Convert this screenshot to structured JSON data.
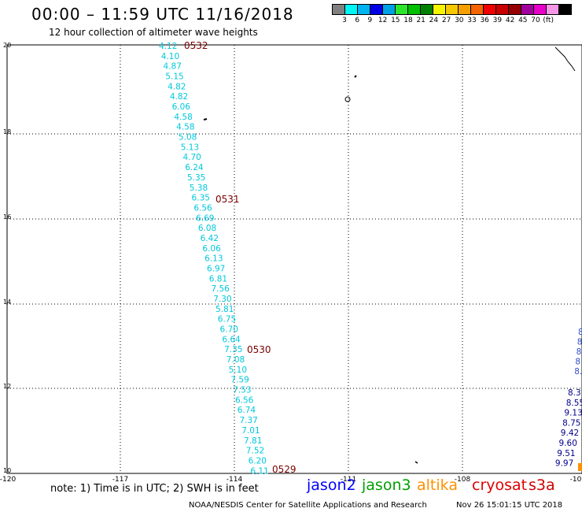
{
  "header": {
    "title": "00:00 – 11:59 UTC 11/16/2018",
    "subtitle": "12 hour collection of altimeter wave heights"
  },
  "color_scale": {
    "colors": [
      "#808080",
      "#00f5f5",
      "#00b4f0",
      "#0000e6",
      "#00a0e6",
      "#2ce62c",
      "#00c000",
      "#008000",
      "#f5f500",
      "#f5c800",
      "#f5a000",
      "#f56400",
      "#f00000",
      "#c80000",
      "#960000",
      "#a0009b",
      "#e600c8",
      "#f596e6",
      "#000000"
    ],
    "labels": [
      "3",
      "6",
      "9",
      "12",
      "15",
      "18",
      "21",
      "24",
      "27",
      "30",
      "33",
      "36",
      "39",
      "42",
      "45",
      "70",
      "(ft)"
    ]
  },
  "axes": {
    "y_ticks": [
      "20",
      "18",
      "16",
      "14",
      "12",
      "10"
    ],
    "x_ticks": [
      "-120",
      "-117",
      "-114",
      "-111",
      "-108",
      "-10"
    ]
  },
  "track_main": {
    "color": "#00c8dc",
    "values": [
      "4.12",
      "4.10",
      "4.87",
      "5.15",
      "4.82",
      "4.82",
      "6.06",
      "4.58",
      "4.58",
      "5.08",
      "5.13",
      "4.70",
      "6.24",
      "5.35",
      "5.38",
      "6.35",
      "6.56",
      "6.69",
      "6.08",
      "6.42",
      "6.06",
      "6.13",
      "6.97",
      "6.81",
      "7.56",
      "7.30",
      "5.81",
      "6.75",
      "6.70",
      "6.64",
      "7.35",
      "7.08",
      "5.10",
      "7.59",
      "7.53",
      "6.56",
      "6.74",
      "7.37",
      "7.01",
      "7.81",
      "7.52",
      "6.20",
      "6.11"
    ]
  },
  "time_markers": {
    "color": "#7a0000",
    "items": [
      "0532",
      "0531",
      "0530",
      "0529"
    ]
  },
  "track_right": {
    "color": "#00008c",
    "values": [
      "8.3",
      "8.55",
      "9.13",
      "8.75",
      "9.42",
      "9.60",
      "9.51",
      "9.97"
    ],
    "partial": [
      "8",
      "8",
      "8",
      "8",
      "8.1"
    ]
  },
  "note": "note: 1) Time is in UTC; 2) SWH is in feet",
  "satellites": [
    {
      "name": "jason2",
      "color": "#0000ff"
    },
    {
      "name": "jason3",
      "color": "#00a000"
    },
    {
      "name": "altika",
      "color": "#ff9000"
    },
    {
      "name": "cryosat",
      "color": "#e00000"
    },
    {
      "name": "s3a",
      "color": "#d00000"
    }
  ],
  "credit": "NOAA/NESDIS Center for Satellite Applications and Research",
  "timestamp": "Nov 26 15:01:15 UTC 2018"
}
